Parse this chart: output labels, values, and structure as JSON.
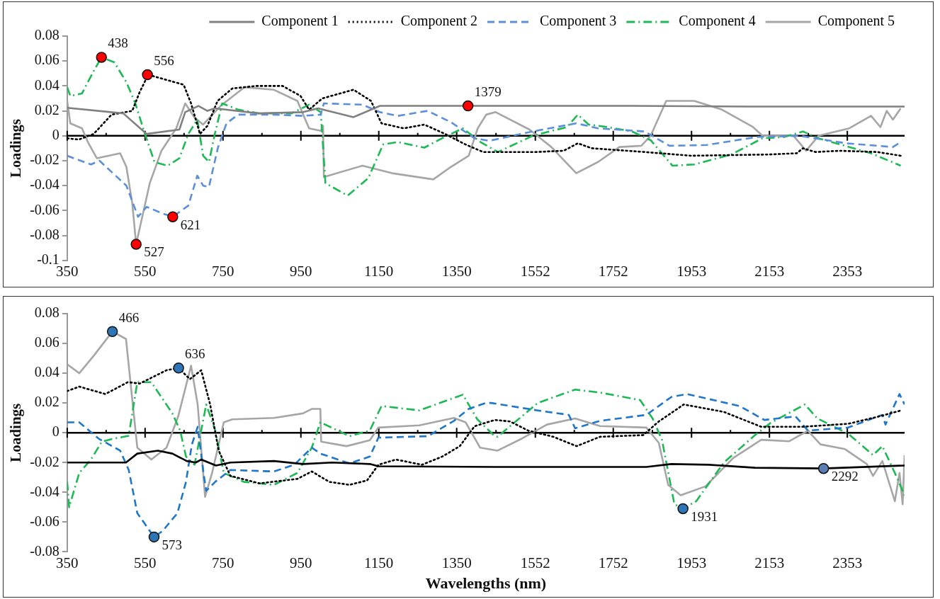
{
  "chart_data": [
    {
      "type": "line",
      "ylabel": "Loadings",
      "legend": "top",
      "xlim": [
        350,
        2500
      ],
      "ylim": [
        -0.1,
        0.08
      ],
      "xticks": [
        350,
        550,
        750,
        950,
        1150,
        1350,
        1552,
        1752,
        1953,
        2153,
        2353
      ],
      "yticks": [
        -0.1,
        -0.08,
        -0.06,
        -0.04,
        -0.02,
        0,
        0.02,
        0.04,
        0.06,
        0.08
      ],
      "ref_lines": [
        {
          "axis": "y",
          "value": 0,
          "color": "#000000"
        }
      ],
      "series": [
        {
          "name": "Component 1",
          "color": "#808080",
          "line_style": "solid",
          "marker": "none",
          "x": [
            350,
            494,
            554,
            638,
            653,
            687,
            710,
            729,
            842,
            956,
            994,
            1085,
            1153,
            1400,
            1800,
            2100,
            2500
          ],
          "values": [
            0.0225,
            0.018,
            0.0015,
            0.005,
            0.019,
            0.024,
            0.02,
            0.022,
            0.018,
            0.019,
            0.022,
            0.015,
            0.024,
            0.024,
            0.024,
            0.0235,
            0.0235
          ]
        },
        {
          "name": "Component 2",
          "color": "#000000",
          "line_style": "dotted",
          "marker": "none",
          "x": [
            350,
            380,
            418,
            464,
            517,
            536,
            558,
            592,
            649,
            668,
            691,
            710,
            736,
            774,
            835,
            903,
            949,
            971,
            1005,
            1085,
            1130,
            1157,
            1214,
            1267,
            1320,
            1373,
            1418,
            1553,
            1625,
            1661,
            1697,
            1832,
            1952,
            2151,
            2223,
            2239,
            2271,
            2334,
            2430,
            2490
          ],
          "values": [
            -0.002,
            -0.003,
            0.0015,
            0.017,
            0.02,
            0.035,
            0.049,
            0.046,
            0.041,
            0.026,
            0.0015,
            0.008,
            0.028,
            0.038,
            0.04,
            0.04,
            0.032,
            0.021,
            0.03,
            0.037,
            0.028,
            0.01,
            0.006,
            0.009,
            0.0015,
            -0.007,
            -0.013,
            -0.013,
            -0.012,
            -0.006,
            -0.01,
            -0.013,
            -0.016,
            -0.015,
            -0.014,
            -0.01,
            -0.013,
            -0.012,
            -0.013,
            -0.016
          ]
        },
        {
          "name": "Component 3",
          "color": "#5b8fd9",
          "line_style": "dashed",
          "marker": "none",
          "x": [
            350,
            411,
            433,
            464,
            502,
            532,
            554,
            592,
            621,
            661,
            684,
            699,
            714,
            737,
            759,
            789,
            880,
            956,
            1001,
            1009,
            1108,
            1153,
            1199,
            1275,
            1335,
            1396,
            1434,
            1545,
            1657,
            1713,
            1832,
            1896,
            1992,
            2119,
            2231,
            2350,
            2470,
            2490
          ],
          "values": [
            -0.016,
            -0.023,
            -0.02,
            -0.029,
            -0.04,
            -0.065,
            -0.057,
            -0.062,
            -0.065,
            -0.056,
            -0.032,
            -0.04,
            -0.041,
            -0.0095,
            0.01,
            0.017,
            0.017,
            0.016,
            0.017,
            0.026,
            0.025,
            0.019,
            0.016,
            0.02,
            0.011,
            -0.002,
            -0.004,
            0.0035,
            0.01,
            0.006,
            0.0035,
            -0.008,
            -0.0074,
            -0.001,
            0,
            -0.006,
            -0.009,
            -0.005
          ]
        },
        {
          "name": "Component 4",
          "color": "#1db954",
          "line_style": "dashdot",
          "marker": "none",
          "x": [
            350,
            358,
            388,
            418,
            438,
            471,
            502,
            525,
            547,
            574,
            608,
            638,
            661,
            684,
            699,
            714,
            729,
            748,
            789,
            842,
            926,
            971,
            1001,
            1013,
            1070,
            1123,
            1161,
            1199,
            1267,
            1320,
            1366,
            1411,
            1456,
            1545,
            1633,
            1661,
            1689,
            1737,
            1800,
            1848,
            1904,
            1960,
            2055,
            2135,
            2191,
            2239,
            2279,
            2358,
            2414,
            2490
          ],
          "values": [
            0.039,
            0.032,
            0.034,
            0.052,
            0.063,
            0.059,
            0.043,
            0.026,
            0.004,
            -0.021,
            -0.024,
            -0.018,
            0.0015,
            0.013,
            -0.016,
            -0.021,
            0.0015,
            0.026,
            0.021,
            0.018,
            0.018,
            0.025,
            0.019,
            -0.038,
            -0.048,
            -0.034,
            -0.007,
            -0.005,
            -0.0095,
            -0.0007,
            0.006,
            -0.005,
            -0.013,
            0,
            0.007,
            0.017,
            0.009,
            0.007,
            0.0035,
            -0.0035,
            -0.024,
            -0.023,
            -0.015,
            -0.002,
            -0.001,
            0.0035,
            -0.002,
            -0.009,
            -0.014,
            -0.024
          ]
        },
        {
          "name": "Component 5",
          "color": "#a6a6a6",
          "line_style": "solid",
          "marker": "none",
          "x": [
            350,
            358,
            388,
            403,
            426,
            486,
            502,
            517,
            527,
            562,
            592,
            630,
            653,
            676,
            699,
            744,
            805,
            880,
            941,
            971,
            1001,
            1007,
            1009,
            1108,
            1184,
            1290,
            1335,
            1381,
            1404,
            1426,
            1450,
            1537,
            1593,
            1657,
            1713,
            1768,
            1824,
            1848,
            1888,
            1960,
            2031,
            2111,
            2135,
            2215,
            2247,
            2279,
            2358,
            2414,
            2438,
            2454,
            2470,
            2490
          ],
          "values": [
            0.028,
            0.01,
            0.006,
            -0.005,
            -0.018,
            -0.014,
            -0.025,
            -0.054,
            -0.087,
            -0.038,
            -0.012,
            0.006,
            0.026,
            0.015,
            0.009,
            0.024,
            0.039,
            0.037,
            0.028,
            0.006,
            0.004,
            0.008,
            -0.033,
            -0.024,
            -0.03,
            -0.035,
            -0.025,
            -0.016,
            0.006,
            0.017,
            0.019,
            0.005,
            -0.009,
            -0.03,
            -0.021,
            -0.009,
            -0.008,
            0,
            0.028,
            0.028,
            0.021,
            0.007,
            0,
            0,
            -0.012,
            0,
            0.006,
            0.016,
            0.007,
            0.02,
            0.013,
            0.022
          ]
        },
        {
          "type": "scatter",
          "color": "#ff0000",
          "marker": "circle",
          "x": [
            438,
            527,
            556,
            621,
            1379
          ],
          "values": [
            0.063,
            -0.087,
            0.049,
            -0.065,
            0.024
          ]
        }
      ],
      "annotations": [
        {
          "text": "438",
          "x": 438,
          "y": 0.063
        },
        {
          "text": "527",
          "x": 527,
          "y": -0.087
        },
        {
          "text": "556",
          "x": 556,
          "y": 0.049
        },
        {
          "text": "621",
          "x": 621,
          "y": -0.065
        },
        {
          "text": "1379",
          "x": 1379,
          "y": 0.024
        }
      ]
    },
    {
      "type": "line",
      "xlabel": "Wavelengths (nm)",
      "ylabel": "Loadings",
      "xlim": [
        350,
        2500
      ],
      "ylim": [
        -0.08,
        0.08
      ],
      "xticks": [
        350,
        550,
        750,
        950,
        1150,
        1350,
        1552,
        1752,
        1953,
        2153,
        2353
      ],
      "yticks": [
        -0.08,
        -0.06,
        -0.04,
        -0.02,
        0,
        0.02,
        0.04,
        0.06,
        0.08
      ],
      "ref_lines": [
        {
          "axis": "y",
          "value": 0,
          "color": "#000000"
        }
      ],
      "series": [
        {
          "color": "#000000",
          "line_style": "solid",
          "marker": "none",
          "x": [
            350,
            501,
            530,
            583,
            620,
            657,
            680,
            694,
            732,
            769,
            881,
            955,
            1030,
            1127,
            1149,
            1448,
            1837,
            1901,
            1997,
            2116,
            2292,
            2500
          ],
          "values": [
            -0.02,
            -0.02,
            -0.014,
            -0.012,
            -0.014,
            -0.019,
            -0.02,
            -0.018,
            -0.022,
            -0.02,
            -0.019,
            -0.021,
            -0.02,
            -0.021,
            -0.0225,
            -0.023,
            -0.023,
            -0.021,
            -0.0215,
            -0.0235,
            -0.024,
            -0.022
          ]
        },
        {
          "color": "#000000",
          "line_style": "dotted",
          "marker": "none",
          "x": [
            350,
            381,
            448,
            506,
            536,
            605,
            636,
            665,
            694,
            717,
            739,
            769,
            844,
            941,
            978,
            1023,
            1075,
            1120,
            1149,
            1194,
            1261,
            1313,
            1358,
            1396,
            1448,
            1487,
            1534,
            1598,
            1658,
            1718,
            1829,
            1869,
            1933,
            2036,
            2132,
            2236,
            2355,
            2435,
            2491
          ],
          "values": [
            0.028,
            0.031,
            0.026,
            0.034,
            0.033,
            0.042,
            0.0435,
            0.036,
            0.042,
            0.019,
            -0.012,
            -0.029,
            -0.034,
            -0.031,
            -0.026,
            -0.033,
            -0.035,
            -0.032,
            -0.0215,
            -0.018,
            -0.0215,
            -0.016,
            -0.009,
            0.0044,
            0.0086,
            0.0076,
            0.0014,
            -0.0027,
            -0.009,
            -0.0027,
            -0.0016,
            0.0076,
            0.019,
            0.014,
            0.004,
            0.004,
            0.006,
            0.011,
            0.015
          ]
        },
        {
          "color": "#1f77c9",
          "line_style": "dashed",
          "marker": "none",
          "x": [
            350,
            381,
            431,
            486,
            508,
            530,
            573,
            595,
            633,
            655,
            670,
            685,
            700,
            707,
            730,
            769,
            881,
            933,
            978,
            1000,
            1075,
            1127,
            1149,
            1276,
            1343,
            1381,
            1425,
            1439,
            1558,
            1638,
            1654,
            1718,
            1837,
            1901,
            1941,
            2076,
            2140,
            2220,
            2252,
            2355,
            2443,
            2451,
            2487,
            2500
          ],
          "values": [
            0.007,
            0.007,
            -0.004,
            -0.012,
            -0.025,
            -0.054,
            -0.07,
            -0.066,
            -0.054,
            -0.033,
            -0.008,
            0.004,
            -0.027,
            -0.039,
            -0.033,
            -0.025,
            -0.026,
            -0.0215,
            -0.01,
            -0.014,
            -0.0206,
            -0.016,
            -0.0033,
            -0.0023,
            0.008,
            0.016,
            0.02,
            0.02,
            0.015,
            0.012,
            0.003,
            0.008,
            0.012,
            0.024,
            0.026,
            0.018,
            0.0086,
            0.011,
            0.0014,
            0.0035,
            0.012,
            0.0055,
            0.026,
            0.019
          ]
        },
        {
          "color": "#1db954",
          "line_style": "dashdot",
          "marker": "none",
          "x": [
            350,
            355,
            381,
            411,
            439,
            469,
            508,
            530,
            566,
            620,
            640,
            655,
            677,
            707,
            730,
            752,
            804,
            881,
            941,
            978,
            1000,
            1075,
            1127,
            1157,
            1254,
            1366,
            1403,
            1448,
            1455,
            1558,
            1654,
            1718,
            1821,
            1853,
            1877,
            1909,
            1931,
            1965,
            2036,
            2116,
            2156,
            2244,
            2276,
            2355,
            2419,
            2443,
            2475,
            2500
          ],
          "values": [
            -0.033,
            -0.05,
            -0.027,
            -0.018,
            -0.006,
            -0.004,
            -0.002,
            0.034,
            0.034,
            0.013,
            0.0015,
            -0.016,
            -0.0215,
            0.019,
            0.0015,
            -0.027,
            -0.033,
            -0.035,
            -0.027,
            -0.01,
            0.007,
            -0.0023,
            0.0015,
            0.018,
            0.015,
            0.0256,
            0.009,
            -0.0023,
            -0.0027,
            0.02,
            0.029,
            0.027,
            0.022,
            0.0096,
            -0.0047,
            -0.048,
            -0.051,
            -0.046,
            -0.02,
            -0.0016,
            0.0066,
            0.019,
            0.0096,
            -0.0006,
            -0.015,
            -0.009,
            -0.027,
            -0.042
          ]
        },
        {
          "color": "#a6a6a6",
          "line_style": "solid",
          "marker": "none",
          "x": [
            350,
            381,
            419,
            466,
            501,
            516,
            530,
            566,
            605,
            635,
            668,
            685,
            704,
            722,
            752,
            774,
            881,
            955,
            978,
            1000,
            1002,
            1067,
            1127,
            1149,
            1254,
            1343,
            1373,
            1410,
            1455,
            1519,
            1582,
            1654,
            1718,
            1837,
            1869,
            1893,
            1925,
            1989,
            2060,
            2132,
            2204,
            2252,
            2284,
            2347,
            2403,
            2419,
            2443,
            2475,
            2487,
            2495,
            2500
          ],
          "values": [
            0.046,
            0.04,
            0.052,
            0.068,
            0.063,
            0.025,
            -0.01,
            -0.018,
            -0.01,
            0.011,
            0.045,
            0.019,
            -0.043,
            -0.027,
            0.007,
            0.009,
            0.01,
            0.013,
            0.016,
            0.016,
            -0.006,
            -0.009,
            -0.005,
            0.0035,
            0.005,
            0.01,
            0.007,
            -0.01,
            -0.012,
            -0.0037,
            0.0055,
            0.0096,
            0.0045,
            0.0035,
            -0.0068,
            -0.035,
            -0.042,
            -0.036,
            -0.017,
            -0.0047,
            -0.0057,
            0.0014,
            -0.0078,
            -0.011,
            -0.021,
            -0.029,
            -0.019,
            -0.046,
            -0.027,
            -0.048,
            -0.015
          ]
        },
        {
          "type": "scatter",
          "color": "#2e75b6",
          "marker": "circle",
          "x": [
            466,
            573,
            636,
            1931,
            2292
          ],
          "values": [
            0.068,
            -0.07,
            0.0435,
            -0.051,
            -0.024
          ],
          "colors": [
            null,
            null,
            null,
            null,
            "#5a7fb5"
          ]
        }
      ],
      "annotations": [
        {
          "text": "466",
          "x": 466,
          "y": 0.068
        },
        {
          "text": "573",
          "x": 573,
          "y": -0.07
        },
        {
          "text": "636",
          "x": 636,
          "y": 0.0435
        },
        {
          "text": "1931",
          "x": 1931,
          "y": -0.051
        },
        {
          "text": "2292",
          "x": 2292,
          "y": -0.024
        }
      ]
    }
  ]
}
